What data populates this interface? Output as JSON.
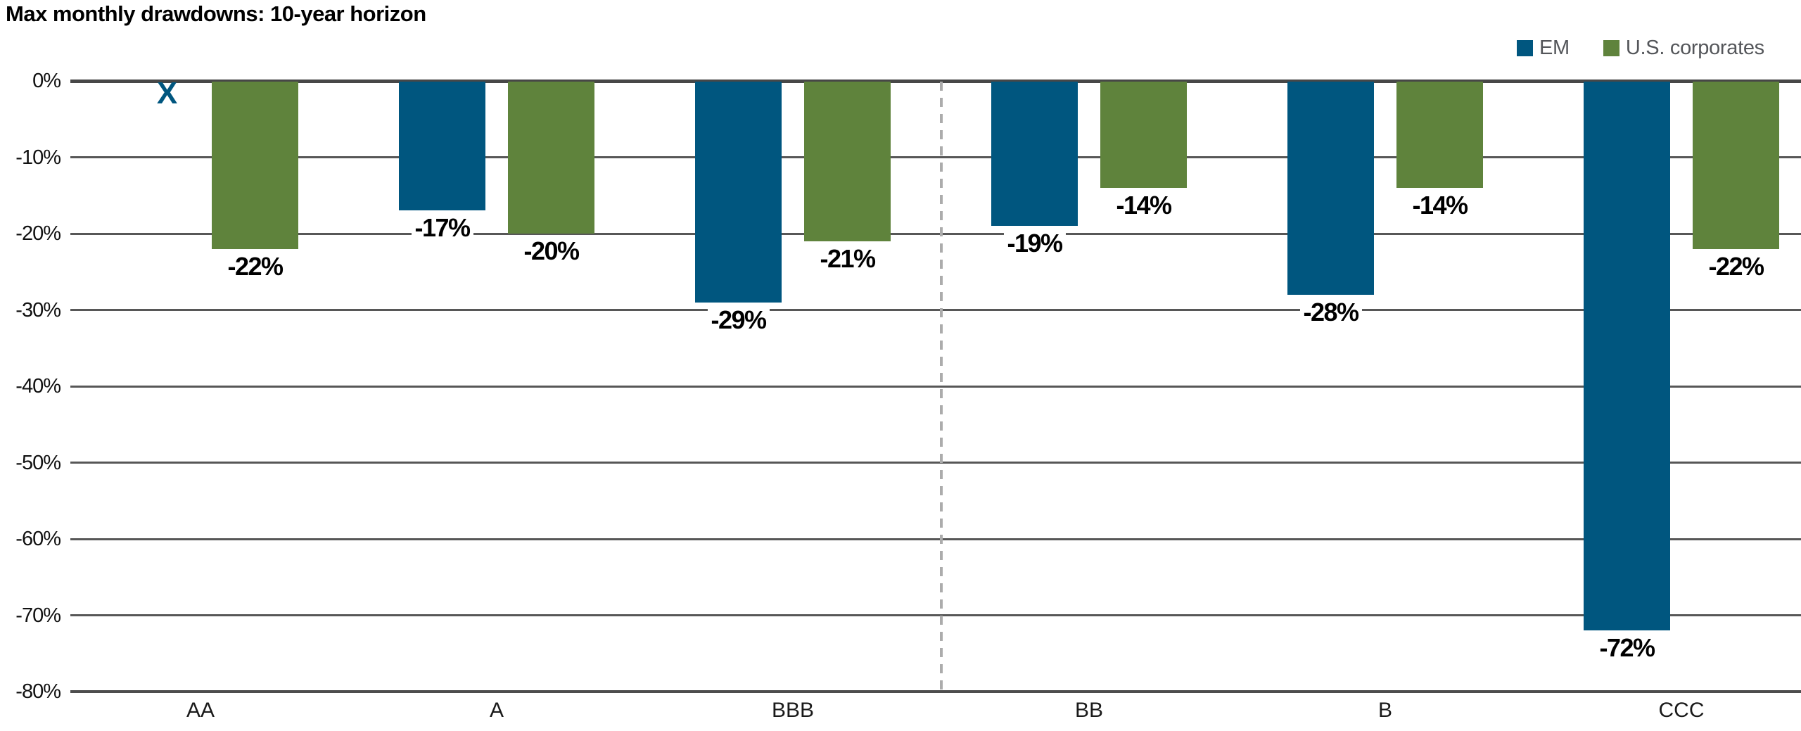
{
  "title": "Max monthly drawdowns: 10-year horizon",
  "legend": [
    {
      "label": "EM",
      "color": "#00567F"
    },
    {
      "label": "U.S. corporates",
      "color": "#5F833C"
    }
  ],
  "colors": {
    "em_bar": "#00567F",
    "us_corporates_bar": "#5F833C",
    "zero_axis_line": "#474747",
    "gridline": "#575757",
    "baseline": "#4D4D4D",
    "divider_dash": "#ACACAC",
    "legend_text": "#54565A",
    "missing_marker": "#00567F"
  },
  "chart_data": {
    "type": "bar",
    "title": "Max monthly drawdowns: 10-year horizon",
    "categories": [
      "AA",
      "A",
      "BBB",
      "BB",
      "B",
      "CCC"
    ],
    "series": [
      {
        "name": "EM",
        "color": "#00567F",
        "values": [
          null,
          -17,
          -29,
          -19,
          -28,
          -72
        ],
        "labels": [
          null,
          "-17%",
          "-29%",
          "-19%",
          "-28%",
          "-72%"
        ]
      },
      {
        "name": "U.S. corporates",
        "color": "#5F833C",
        "values": [
          -22,
          -20,
          -21,
          -14,
          -14,
          -22
        ],
        "labels": [
          "-22%",
          "-20%",
          "-21%",
          "-14%",
          "-14%",
          "-22%"
        ]
      }
    ],
    "missing_value_marker": "X",
    "missing_value_category": "AA",
    "missing_value_series": "EM",
    "y_ticks": [
      "0%",
      "-10%",
      "-20%",
      "-30%",
      "-40%",
      "-50%",
      "-60%",
      "-70%",
      "-80%"
    ],
    "y_tick_values": [
      0,
      -10,
      -20,
      -30,
      -40,
      -50,
      -60,
      -70,
      -80
    ],
    "ylim": [
      -80,
      0
    ],
    "grid": true,
    "legend_position": "top-right",
    "divider_after_category": "BBB"
  }
}
